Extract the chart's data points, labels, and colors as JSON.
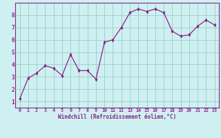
{
  "x": [
    0,
    1,
    2,
    3,
    4,
    5,
    6,
    7,
    8,
    9,
    10,
    11,
    12,
    13,
    14,
    15,
    16,
    17,
    18,
    19,
    20,
    21,
    22,
    23
  ],
  "y": [
    1.2,
    2.9,
    3.3,
    3.9,
    3.7,
    3.1,
    4.8,
    3.5,
    3.5,
    2.8,
    5.8,
    6.0,
    7.0,
    8.2,
    8.5,
    8.3,
    8.5,
    8.2,
    6.7,
    6.3,
    6.4,
    7.1,
    7.6,
    7.2
  ],
  "line_color": "#882288",
  "marker": "d",
  "marker_size": 2.5,
  "bg_color": "#cff0f0",
  "grid_color": "#99cccc",
  "xlabel": "Windchill (Refroidissement éolien,°C)",
  "xlabel_color": "#882288",
  "tick_color": "#882288",
  "border_color": "#882288",
  "xlim": [
    -0.5,
    23.5
  ],
  "ylim": [
    0.5,
    9.0
  ],
  "yticks": [
    1,
    2,
    3,
    4,
    5,
    6,
    7,
    8
  ],
  "xticks": [
    0,
    1,
    2,
    3,
    4,
    5,
    6,
    7,
    8,
    9,
    10,
    11,
    12,
    13,
    14,
    15,
    16,
    17,
    18,
    19,
    20,
    21,
    22,
    23
  ],
  "figsize": [
    3.2,
    2.0
  ],
  "dpi": 100
}
